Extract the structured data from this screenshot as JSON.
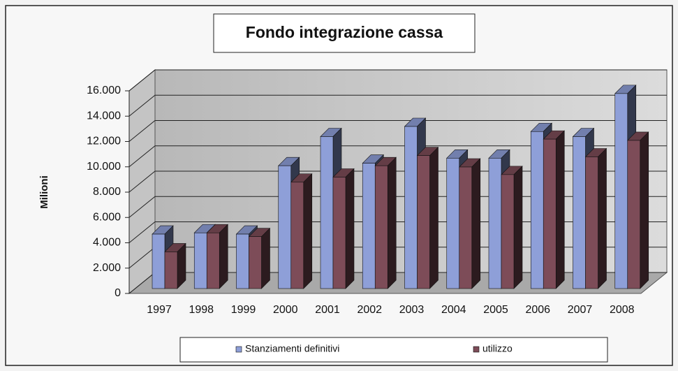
{
  "chart_data": {
    "type": "bar3d",
    "title": "Fondo integrazione cassa",
    "y_label": "Milioni",
    "categories": [
      "1997",
      "1998",
      "1999",
      "2000",
      "2001",
      "2002",
      "2003",
      "2004",
      "2005",
      "2006",
      "2007",
      "2008"
    ],
    "series": [
      {
        "name": "Stanziamenti definitivi",
        "color": "#8e9fd8",
        "values": [
          4300,
          4400,
          4300,
          9700,
          12000,
          9900,
          12800,
          10300,
          10300,
          12400,
          12000,
          15400
        ]
      },
      {
        "name": "utilizzo",
        "color": "#7d4c58",
        "values": [
          2900,
          4400,
          4100,
          8400,
          8800,
          9700,
          10500,
          9600,
          9000,
          11800,
          10400,
          11700
        ]
      }
    ],
    "ylim": [
      0,
      16000
    ],
    "yticks": [
      0,
      {
        "value": 2000,
        "label": "2.000"
      },
      {
        "value": 4000,
        "label": "4.000"
      },
      {
        "value": 6000,
        "label": "6.000"
      },
      {
        "value": 8000,
        "label": "8.000"
      },
      {
        "value": 10000,
        "label": "10.000"
      },
      {
        "value": 12000,
        "label": "12.000"
      },
      {
        "value": 14000,
        "label": "14.000"
      },
      {
        "value": 16000,
        "label": "16.000"
      }
    ],
    "grid": true,
    "legend": "bottom"
  }
}
